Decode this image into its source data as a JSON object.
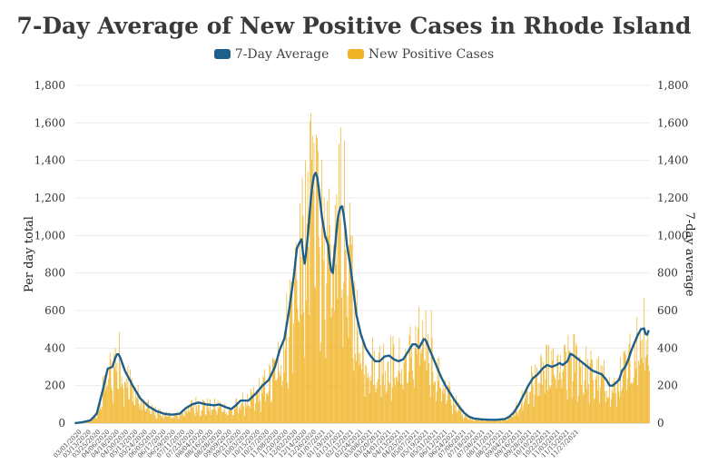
{
  "chart_data": {
    "type": "bar",
    "title": "7-Day Average of New Positive Cases in Rhode Island",
    "ylabel_left": "Per day total",
    "ylabel_right": "7-day average",
    "ylim": [
      0,
      1800
    ],
    "yticks": [
      "0",
      "200",
      "400",
      "600",
      "800",
      "1,000",
      "1,200",
      "1,400",
      "1,600",
      "1,800"
    ],
    "legend": [
      {
        "name": "7-Day Average",
        "color": "#1f5f8b"
      },
      {
        "name": "New Positive Cases",
        "color": "#f0b323"
      }
    ],
    "x_start": "03/01/2020",
    "x_end": "12/31/2021",
    "xtick_labels": [
      "03/01/2020",
      "03/13/2020",
      "03/25/2020",
      "04/06/2020",
      "04/18/2020",
      "04/30/2020",
      "05/12/2020",
      "05/24/2020",
      "06/05/2020",
      "06/17/2020",
      "06/29/2020",
      "07/11/2020",
      "07/23/2020",
      "08/04/2020",
      "08/16/2020",
      "08/28/2020",
      "09/09/2020",
      "09/21/2020",
      "10/03/2020",
      "10/15/2020",
      "10/27/2020",
      "11/08/2020",
      "11/20/2020",
      "12/02/2020",
      "12/14/2020",
      "12/26/2020",
      "01/07/2021",
      "01/19/2021",
      "01/31/2021",
      "02/12/2021",
      "02/24/2021",
      "03/08/2021",
      "03/20/2021",
      "04/01/2021",
      "04/13/2021",
      "04/25/2021",
      "05/07/2021",
      "05/19/2021",
      "05/31/2021",
      "06/12/2021",
      "06/24/2021",
      "07/06/2021",
      "07/18/2021",
      "07/30/2021",
      "08/11/2021",
      "08/23/2021",
      "09/04/2021",
      "09/16/2021",
      "09/28/2021",
      "10/10/2021",
      "10/22/2021",
      "11/03/2021",
      "11/15/2021",
      "11/27/2021"
    ],
    "series": [
      {
        "name": "7-Day Average",
        "color": "#1f5f8b",
        "keypoints": [
          [
            0,
            0
          ],
          [
            10,
            5
          ],
          [
            20,
            15
          ],
          [
            28,
            50
          ],
          [
            36,
            180
          ],
          [
            42,
            290
          ],
          [
            48,
            300
          ],
          [
            52,
            350
          ],
          [
            55,
            375
          ],
          [
            58,
            350
          ],
          [
            64,
            280
          ],
          [
            74,
            200
          ],
          [
            84,
            130
          ],
          [
            94,
            90
          ],
          [
            104,
            65
          ],
          [
            114,
            50
          ],
          [
            124,
            45
          ],
          [
            134,
            50
          ],
          [
            142,
            80
          ],
          [
            150,
            100
          ],
          [
            158,
            110
          ],
          [
            168,
            100
          ],
          [
            178,
            95
          ],
          [
            185,
            100
          ],
          [
            193,
            85
          ],
          [
            200,
            75
          ],
          [
            206,
            95
          ],
          [
            212,
            120
          ],
          [
            222,
            120
          ],
          [
            232,
            160
          ],
          [
            240,
            200
          ],
          [
            248,
            230
          ],
          [
            256,
            300
          ],
          [
            262,
            390
          ],
          [
            268,
            450
          ],
          [
            274,
            600
          ],
          [
            280,
            780
          ],
          [
            284,
            930
          ],
          [
            287,
            960
          ],
          [
            290,
            980
          ],
          [
            292,
            900
          ],
          [
            294,
            850
          ],
          [
            297,
            950
          ],
          [
            300,
            1100
          ],
          [
            303,
            1250
          ],
          [
            306,
            1320
          ],
          [
            309,
            1340
          ],
          [
            312,
            1250
          ],
          [
            316,
            1100
          ],
          [
            320,
            1000
          ],
          [
            324,
            950
          ],
          [
            327,
            820
          ],
          [
            330,
            800
          ],
          [
            333,
            950
          ],
          [
            336,
            1080
          ],
          [
            339,
            1150
          ],
          [
            342,
            1155
          ],
          [
            345,
            1080
          ],
          [
            348,
            950
          ],
          [
            352,
            850
          ],
          [
            356,
            720
          ],
          [
            360,
            580
          ],
          [
            366,
            470
          ],
          [
            372,
            400
          ],
          [
            378,
            360
          ],
          [
            384,
            330
          ],
          [
            390,
            330
          ],
          [
            396,
            355
          ],
          [
            402,
            360
          ],
          [
            408,
            340
          ],
          [
            414,
            330
          ],
          [
            420,
            340
          ],
          [
            426,
            380
          ],
          [
            432,
            420
          ],
          [
            436,
            420
          ],
          [
            440,
            400
          ],
          [
            444,
            430
          ],
          [
            447,
            455
          ],
          [
            450,
            430
          ],
          [
            456,
            370
          ],
          [
            462,
            310
          ],
          [
            468,
            250
          ],
          [
            474,
            200
          ],
          [
            480,
            160
          ],
          [
            486,
            120
          ],
          [
            492,
            85
          ],
          [
            498,
            55
          ],
          [
            504,
            35
          ],
          [
            510,
            25
          ],
          [
            520,
            20
          ],
          [
            530,
            18
          ],
          [
            540,
            18
          ],
          [
            550,
            22
          ],
          [
            556,
            35
          ],
          [
            562,
            60
          ],
          [
            568,
            100
          ],
          [
            574,
            150
          ],
          [
            580,
            200
          ],
          [
            586,
            240
          ],
          [
            592,
            260
          ],
          [
            598,
            290
          ],
          [
            604,
            310
          ],
          [
            610,
            300
          ],
          [
            616,
            310
          ],
          [
            620,
            320
          ],
          [
            624,
            310
          ],
          [
            630,
            330
          ],
          [
            634,
            370
          ],
          [
            638,
            360
          ],
          [
            644,
            340
          ],
          [
            650,
            320
          ],
          [
            656,
            300
          ],
          [
            662,
            280
          ],
          [
            668,
            270
          ],
          [
            674,
            260
          ],
          [
            680,
            230
          ],
          [
            684,
            200
          ],
          [
            688,
            200
          ],
          [
            692,
            215
          ],
          [
            696,
            230
          ],
          [
            700,
            280
          ],
          [
            704,
            300
          ],
          [
            708,
            340
          ],
          [
            712,
            390
          ],
          [
            716,
            430
          ],
          [
            720,
            470
          ],
          [
            724,
            500
          ],
          [
            728,
            505
          ],
          [
            731,
            460
          ],
          [
            734,
            495
          ]
        ],
        "note": "x is day index since 03/01/2020; y is cases"
      },
      {
        "name": "New Positive Cases",
        "color": "#f0b323",
        "derived_from": "7-Day Average with daily variation; peak daily value about 1,610 around 12/2020"
      }
    ],
    "spikes": [
      [
        295,
        1400
      ],
      [
        301,
        1610
      ],
      [
        304,
        1530
      ],
      [
        311,
        1450
      ],
      [
        319,
        1200
      ],
      [
        340,
        1575
      ],
      [
        335,
        1220
      ],
      [
        355,
        1000
      ],
      [
        440,
        620
      ],
      [
        456,
        600
      ],
      [
        612,
        400
      ],
      [
        633,
        390
      ],
      [
        728,
        670
      ]
    ]
  }
}
